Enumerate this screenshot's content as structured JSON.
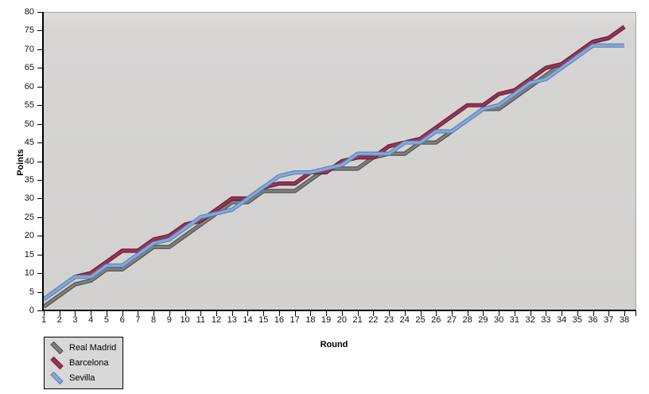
{
  "chart_data": {
    "type": "line",
    "title": "",
    "xlabel": "Round",
    "ylabel": "Points",
    "x": [
      1,
      2,
      3,
      4,
      5,
      6,
      7,
      8,
      9,
      10,
      11,
      12,
      13,
      14,
      15,
      16,
      17,
      18,
      19,
      20,
      21,
      22,
      23,
      24,
      25,
      26,
      27,
      28,
      29,
      30,
      31,
      32,
      33,
      34,
      35,
      36,
      37,
      38
    ],
    "xlim": [
      1,
      38
    ],
    "ylim": [
      0,
      80
    ],
    "ytick_step": 5,
    "grid": false,
    "legend_position": "bottom-left-below-plot",
    "series": [
      {
        "name": "Real Madrid",
        "color": "#7f7f7f",
        "edge_color": "#4a4a4a",
        "values": [
          1,
          4,
          7,
          8,
          11,
          11,
          14,
          17,
          17,
          20,
          23,
          26,
          29,
          29,
          32,
          32,
          32,
          35,
          38,
          38,
          38,
          41,
          42,
          42,
          45,
          45,
          48,
          51,
          54,
          54,
          57,
          60,
          63,
          66,
          69,
          72,
          73,
          76
        ]
      },
      {
        "name": "Barcelona",
        "color": "#9a3357",
        "edge_color": "#611c36",
        "values": [
          3,
          6,
          9,
          10,
          13,
          16,
          16,
          19,
          20,
          23,
          24,
          27,
          30,
          30,
          33,
          34,
          34,
          37,
          37,
          40,
          41,
          41,
          44,
          45,
          46,
          49,
          52,
          55,
          55,
          58,
          59,
          62,
          65,
          66,
          69,
          72,
          73,
          76
        ]
      },
      {
        "name": "Sevilla",
        "color": "#84a9da",
        "edge_color": "#5a7fb2",
        "values": [
          3,
          6,
          9,
          9,
          12,
          12,
          15,
          18,
          19,
          22,
          25,
          26,
          27,
          30,
          33,
          36,
          37,
          37,
          38,
          39,
          42,
          42,
          42,
          45,
          45,
          48,
          48,
          51,
          54,
          55,
          58,
          61,
          62,
          65,
          68,
          71,
          71,
          71
        ]
      }
    ]
  },
  "axes": {
    "x_ticks": [
      "1",
      "2",
      "3",
      "4",
      "5",
      "6",
      "7",
      "8",
      "9",
      "10",
      "11",
      "12",
      "13",
      "14",
      "15",
      "16",
      "17",
      "18",
      "19",
      "20",
      "21",
      "22",
      "23",
      "24",
      "25",
      "26",
      "27",
      "28",
      "29",
      "30",
      "31",
      "32",
      "33",
      "34",
      "35",
      "36",
      "37",
      "38"
    ],
    "y_ticks": [
      "0",
      "5",
      "10",
      "15",
      "20",
      "25",
      "30",
      "35",
      "40",
      "45",
      "50",
      "55",
      "60",
      "65",
      "70",
      "75",
      "80"
    ]
  },
  "labels": {
    "x_axis_title": "Round",
    "y_axis_title": "Points"
  },
  "legend": {
    "items": [
      "Real Madrid",
      "Barcelona",
      "Sevilla"
    ]
  },
  "colors": {
    "page_bg": "#ffffff",
    "plot_bg": "#d4d3d2",
    "plot_bg_top": "#dedddc",
    "plot_top_right_border": "#a6a6a6",
    "axis_line": "#000000",
    "tick_label": "#111111"
  }
}
